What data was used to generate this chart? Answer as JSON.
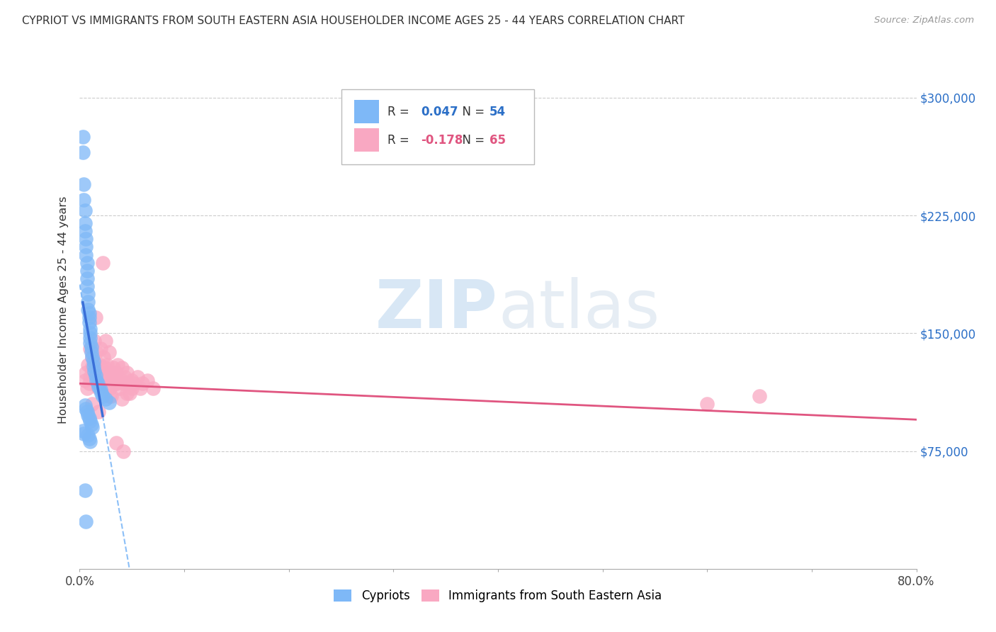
{
  "title": "CYPRIOT VS IMMIGRANTS FROM SOUTH EASTERN ASIA HOUSEHOLDER INCOME AGES 25 - 44 YEARS CORRELATION CHART",
  "source": "Source: ZipAtlas.com",
  "ylabel": "Householder Income Ages 25 - 44 years",
  "xlim": [
    0,
    0.8
  ],
  "ylim": [
    0,
    330000
  ],
  "yticks": [
    75000,
    150000,
    225000,
    300000
  ],
  "ytick_labels": [
    "$75,000",
    "$150,000",
    "$225,000",
    "$300,000"
  ],
  "xticks": [
    0.0,
    0.1,
    0.2,
    0.3,
    0.4,
    0.5,
    0.6,
    0.7,
    0.8
  ],
  "xtick_labels": [
    "0.0%",
    "",
    "",
    "",
    "",
    "",
    "",
    "",
    "80.0%"
  ],
  "legend_label1": "Cypriots",
  "legend_label2": "Immigrants from South Eastern Asia",
  "r1": 0.047,
  "n1": 54,
  "r2": -0.178,
  "n2": 65,
  "color1": "#7EB8F7",
  "color2": "#F9A8C2",
  "line_color1": "#3a6fd8",
  "line_color2": "#e05580",
  "watermark_zip": "ZIP",
  "watermark_atlas": "atlas",
  "background_color": "#FFFFFF",
  "grid_color": "#CCCCCC",
  "cypriot_x": [
    0.003,
    0.003,
    0.004,
    0.004,
    0.005,
    0.005,
    0.005,
    0.006,
    0.006,
    0.006,
    0.007,
    0.007,
    0.007,
    0.007,
    0.008,
    0.008,
    0.008,
    0.009,
    0.009,
    0.009,
    0.01,
    0.01,
    0.01,
    0.01,
    0.011,
    0.011,
    0.012,
    0.013,
    0.013,
    0.014,
    0.015,
    0.016,
    0.017,
    0.018,
    0.02,
    0.021,
    0.022,
    0.025,
    0.028,
    0.005,
    0.006,
    0.007,
    0.008,
    0.009,
    0.01,
    0.011,
    0.012,
    0.003,
    0.004,
    0.008,
    0.009,
    0.01,
    0.005,
    0.006
  ],
  "cypriot_y": [
    275000,
    265000,
    245000,
    235000,
    228000,
    220000,
    215000,
    210000,
    205000,
    200000,
    195000,
    190000,
    185000,
    180000,
    175000,
    170000,
    165000,
    163000,
    160000,
    157000,
    153000,
    150000,
    147000,
    144000,
    141000,
    138000,
    135000,
    132000,
    129000,
    126000,
    123000,
    120000,
    118000,
    116000,
    114000,
    112000,
    110000,
    108000,
    106000,
    104000,
    102000,
    100000,
    98000,
    96000,
    94000,
    92000,
    90000,
    88000,
    86000,
    85000,
    83000,
    81000,
    50000,
    30000
  ],
  "sea_x": [
    0.005,
    0.006,
    0.007,
    0.008,
    0.009,
    0.01,
    0.01,
    0.011,
    0.012,
    0.013,
    0.014,
    0.015,
    0.016,
    0.017,
    0.018,
    0.018,
    0.019,
    0.02,
    0.021,
    0.022,
    0.023,
    0.024,
    0.025,
    0.026,
    0.027,
    0.028,
    0.029,
    0.03,
    0.031,
    0.032,
    0.033,
    0.034,
    0.035,
    0.036,
    0.038,
    0.04,
    0.04,
    0.042,
    0.043,
    0.045,
    0.046,
    0.048,
    0.05,
    0.05,
    0.052,
    0.055,
    0.058,
    0.06,
    0.065,
    0.07,
    0.015,
    0.02,
    0.025,
    0.03,
    0.035,
    0.04,
    0.045,
    0.012,
    0.018,
    0.022,
    0.028,
    0.035,
    0.042,
    0.6,
    0.65
  ],
  "sea_y": [
    120000,
    125000,
    115000,
    130000,
    118000,
    140000,
    122000,
    128000,
    135000,
    125000,
    145000,
    130000,
    138000,
    120000,
    125000,
    115000,
    130000,
    118000,
    125000,
    120000,
    135000,
    128000,
    122000,
    130000,
    118000,
    138000,
    115000,
    125000,
    120000,
    128000,
    122000,
    118000,
    125000,
    130000,
    115000,
    120000,
    128000,
    118000,
    122000,
    125000,
    118000,
    112000,
    120000,
    115000,
    118000,
    122000,
    115000,
    118000,
    120000,
    115000,
    160000,
    140000,
    145000,
    110000,
    118000,
    108000,
    112000,
    105000,
    100000,
    195000,
    110000,
    80000,
    75000,
    105000,
    110000
  ],
  "sea_line_x0": 0.0,
  "sea_line_y0": 118000,
  "sea_line_x1": 0.8,
  "sea_line_y1": 95000
}
